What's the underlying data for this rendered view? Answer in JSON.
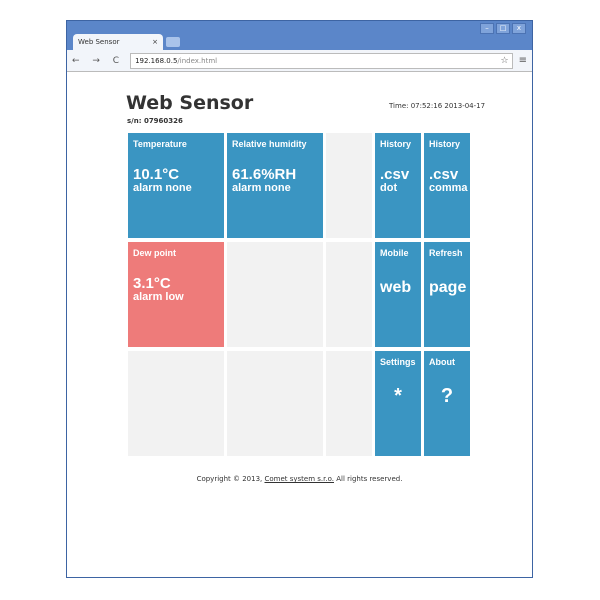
{
  "browser": {
    "tab_title": "Web Sensor",
    "tab_close": "×",
    "url_host": "192.168.0.5",
    "url_path": "/index.html",
    "nav": "← → C",
    "star": "☆",
    "menu": "≡",
    "win_controls": [
      "–",
      "□",
      "x"
    ]
  },
  "header": {
    "title": "Web Sensor",
    "serial": "s/n: 07960326",
    "time": "Time: 07:52:16 2013-04-17"
  },
  "tiles": {
    "temperature": {
      "label": "Temperature",
      "value": "10.1°C",
      "alarm": "alarm none"
    },
    "humidity": {
      "label": "Relative humidity",
      "value": "61.6%RH",
      "alarm": "alarm none"
    },
    "dew": {
      "label": "Dew point",
      "value": "3.1°C",
      "alarm": "alarm low"
    },
    "hist_dot": {
      "label": "History",
      "value": ".csv",
      "sub": "dot"
    },
    "hist_comma": {
      "label": "History",
      "value": ".csv",
      "sub": "comma"
    },
    "mobile": {
      "label": "Mobile",
      "value": "web"
    },
    "refresh": {
      "label": "Refresh",
      "value": "page"
    },
    "settings": {
      "label": "Settings",
      "value": "*"
    },
    "about": {
      "label": "About",
      "value": "?"
    }
  },
  "footer": {
    "prefix": "Copyright © 2013, ",
    "link": "Comet system s.r.o.",
    "suffix": " All rights reserved."
  },
  "colors": {
    "tile_blue": "#3a95c2",
    "tile_alarm": "#ee7b7a",
    "tile_empty": "#f2f2f2"
  }
}
